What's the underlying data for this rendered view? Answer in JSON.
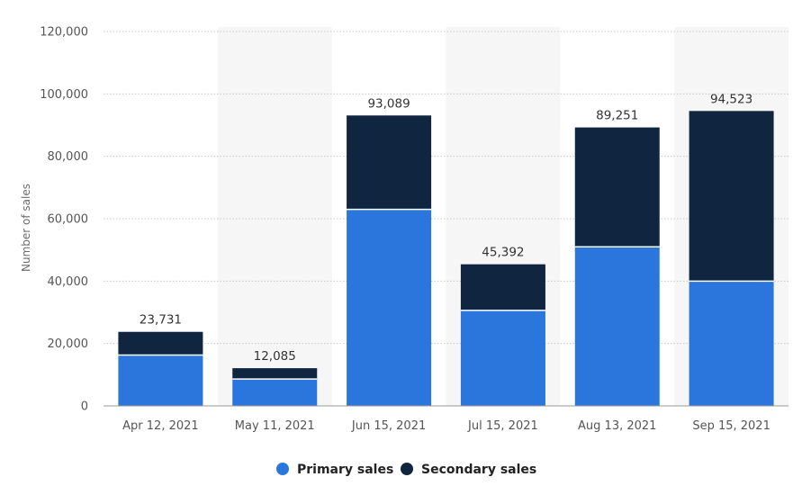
{
  "colors": {
    "primary": "#2a76dd",
    "secondary": "#10253f",
    "band": "#f6f6f6",
    "grid": "#c9c9c9",
    "axis": "#9a9a9a"
  },
  "chart_data": {
    "type": "bar",
    "stacked": true,
    "ylabel": "Number of sales",
    "xlabel": "",
    "ylim": [
      0,
      120000
    ],
    "yticks": [
      0,
      20000,
      40000,
      60000,
      80000,
      100000,
      120000
    ],
    "ytick_labels": [
      "0",
      "20,000",
      "40,000",
      "60,000",
      "80,000",
      "100,000",
      "120,000"
    ],
    "categories": [
      "Apr 12, 2021",
      "May 11, 2021",
      "Jun 15, 2021",
      "Jul 15, 2021",
      "Aug 13, 2021",
      "Sep 15, 2021"
    ],
    "series": [
      {
        "name": "Primary sales",
        "values": [
          16300,
          8600,
          63000,
          30600,
          51000,
          40000
        ]
      },
      {
        "name": "Secondary sales",
        "values": [
          7431,
          3485,
          30089,
          14792,
          38251,
          54523
        ]
      }
    ],
    "totals": [
      23731,
      12085,
      93089,
      45392,
      89251,
      94523
    ],
    "total_labels": [
      "23,731",
      "12,085",
      "93,089",
      "45,392",
      "89,251",
      "94,523"
    ],
    "grid": true,
    "legend_position": "bottom"
  }
}
